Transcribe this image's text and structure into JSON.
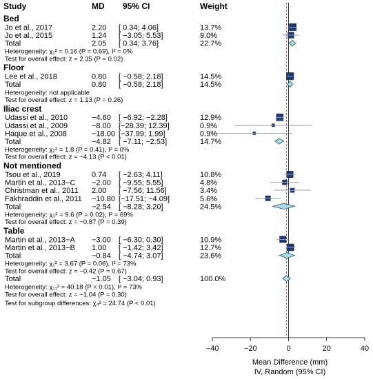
{
  "chart_data": {
    "type": "forest",
    "columns": {
      "study": "Study",
      "md": "MD",
      "ci": "95% CI",
      "weight": "Weight"
    },
    "x_axis": {
      "range": [
        -40,
        40
      ],
      "ticks": [
        "−40",
        "−20",
        "0",
        "20",
        "40"
      ],
      "tick_values": [
        -40,
        -20,
        0,
        20,
        40
      ],
      "label_line1": "Mean Difference (mm)",
      "label_line2": "IV, Random (95% CI)"
    },
    "reference_line": 0,
    "overall_dashed_line": -1.05,
    "colors": {
      "marker": "#1f3a6e",
      "diamond": "#a9dbe8",
      "diamond_edge": "#2b4f5e",
      "line": "#000000",
      "dashed": "#c0392b"
    },
    "groups": [
      {
        "name": "Bed",
        "studies": [
          {
            "study": "Jo et al., 2017",
            "md": "2.20",
            "ci": "[ 0.34; 4.06]",
            "weight": "13.7%",
            "mean": 2.2,
            "lo": 0.34,
            "hi": 4.06,
            "w": 13.7
          },
          {
            "study": "Jo et al., 2015",
            "md": "1.24",
            "ci": "[ −3.05; 5.53]",
            "weight": "9.0%",
            "mean": 1.24,
            "lo": -3.05,
            "hi": 5.53,
            "w": 9.0
          }
        ],
        "total": {
          "label": "Total",
          "md": "2.05",
          "ci": "[ 0.34; 3.76]",
          "weight": "22.7%",
          "mean": 2.05,
          "lo": 0.34,
          "hi": 3.76
        },
        "heterogeneity": "Heterogeneity: χ₁² = 0.16 (P = 0.69), I² = 0%",
        "overall_effect": "Test for overall effect: z = 2.35 (P = 0.02)"
      },
      {
        "name": "Floor",
        "studies": [
          {
            "study": "Lee et al., 2018",
            "md": "0.80",
            "ci": "[ −0.58; 2.18]",
            "weight": "14.5%",
            "mean": 0.8,
            "lo": -0.58,
            "hi": 2.18,
            "w": 14.5
          }
        ],
        "total": {
          "label": "Total",
          "md": "0.80",
          "ci": "[ −0.58; 2.18]",
          "weight": "14.5%",
          "mean": 0.8,
          "lo": -0.58,
          "hi": 2.18
        },
        "heterogeneity": "Heterogeneity: not applicable",
        "overall_effect": "Test for overall effect: z = 1.13 (P = 0.26)"
      },
      {
        "name": "Iliac crest",
        "studies": [
          {
            "study": "Udassi et al., 2010",
            "md": "−4.60",
            "ci": "[ −6.92; −2.28]",
            "weight": "12.9%",
            "mean": -4.6,
            "lo": -6.92,
            "hi": -2.28,
            "w": 12.9
          },
          {
            "study": "Udassi et al., 2009",
            "md": "−8.00",
            "ci": "[−28.39; 12.39]",
            "weight": "0.9%",
            "mean": -8.0,
            "lo": -28.39,
            "hi": 12.39,
            "w": 0.9
          },
          {
            "study": "Haque et al., 2008",
            "md": "−18.00",
            "ci": "[−37.99; 1.99]",
            "weight": "0.9%",
            "mean": -18.0,
            "lo": -37.99,
            "hi": 1.99,
            "w": 0.9
          }
        ],
        "total": {
          "label": "Total",
          "md": "−4.82",
          "ci": "[ −7.11; −2.53]",
          "weight": "14.7%",
          "mean": -4.82,
          "lo": -7.11,
          "hi": -2.53
        },
        "heterogeneity": "Heterogeneity: χ₂² = 1.8 (P = 0.41), I² = 0%",
        "overall_effect": "Test for overall effect: z = −4.13 (P < 0.01)"
      },
      {
        "name": "Not mentioned",
        "studies": [
          {
            "study": "Tsou et al., 2019",
            "md": "0.74",
            "ci": "[ −2.63; 4.11]",
            "weight": "10.8%",
            "mean": 0.74,
            "lo": -2.63,
            "hi": 4.11,
            "w": 10.8
          },
          {
            "study": "Martin et al., 2013−C",
            "md": "−2.00",
            "ci": "[ −9.55; 5.55]",
            "weight": "4.8%",
            "mean": -2.0,
            "lo": -9.55,
            "hi": 5.55,
            "w": 4.8
          },
          {
            "study": "Christman et al., 2011",
            "md": "2.00",
            "ci": "[ −7.56; 11.56]",
            "weight": "3.4%",
            "mean": 2.0,
            "lo": -7.56,
            "hi": 11.56,
            "w": 3.4
          },
          {
            "study": "Fakhraddin et al., 2011",
            "md": "−10.80",
            "ci": "[−17.51; −4.09]",
            "weight": "5.6%",
            "mean": -10.8,
            "lo": -17.51,
            "hi": -4.09,
            "w": 5.6
          }
        ],
        "total": {
          "label": "Total",
          "md": "−2.54",
          "ci": "[ −8.28; 3.20]",
          "weight": "24.5%",
          "mean": -2.54,
          "lo": -8.28,
          "hi": 3.2
        },
        "heterogeneity": "Heterogeneity: χ₃² = 9.6 (P = 0.02), I² = 69%",
        "overall_effect": "Test for overall effect: z = −0.87 (P = 0.39)"
      },
      {
        "name": "Table",
        "studies": [
          {
            "study": "Martin et al., 2013−A",
            "md": "−3.00",
            "ci": "[ −6.30; 0.30]",
            "weight": "10.9%",
            "mean": -3.0,
            "lo": -6.3,
            "hi": 0.3,
            "w": 10.9
          },
          {
            "study": "Martin et al., 2013−B",
            "md": "1.00",
            "ci": "[ −1.42; 3.42]",
            "weight": "12.7%",
            "mean": 1.0,
            "lo": -1.42,
            "hi": 3.42,
            "w": 12.7
          }
        ],
        "total": {
          "label": "Total",
          "md": "−0.84",
          "ci": "[ −4.74; 3.07]",
          "weight": "23.6%",
          "mean": -0.84,
          "lo": -4.74,
          "hi": 3.07
        },
        "heterogeneity": "Heterogeneity: χ₁² = 3.67 (P = 0.06), I² = 73%",
        "overall_effect": "Test for overall effect: z = −0.42 (P = 0.67)"
      }
    ],
    "overall": {
      "label": "Total",
      "md": "−1.05",
      "ci": "[ −3.04; 0.93]",
      "weight": "100.0%",
      "mean": -1.05,
      "lo": -3.04,
      "hi": 0.93,
      "heterogeneity": "Heterogeneity: χ₁₁² = 40.18 (P < 0.01), I² = 73%",
      "overall_effect": "Test for overall effect: z = −1.04 (P = 0.30)",
      "subgroup_test": "Test for subgroup differences: χ₄² = 24.74 (P < 0.01)"
    }
  }
}
